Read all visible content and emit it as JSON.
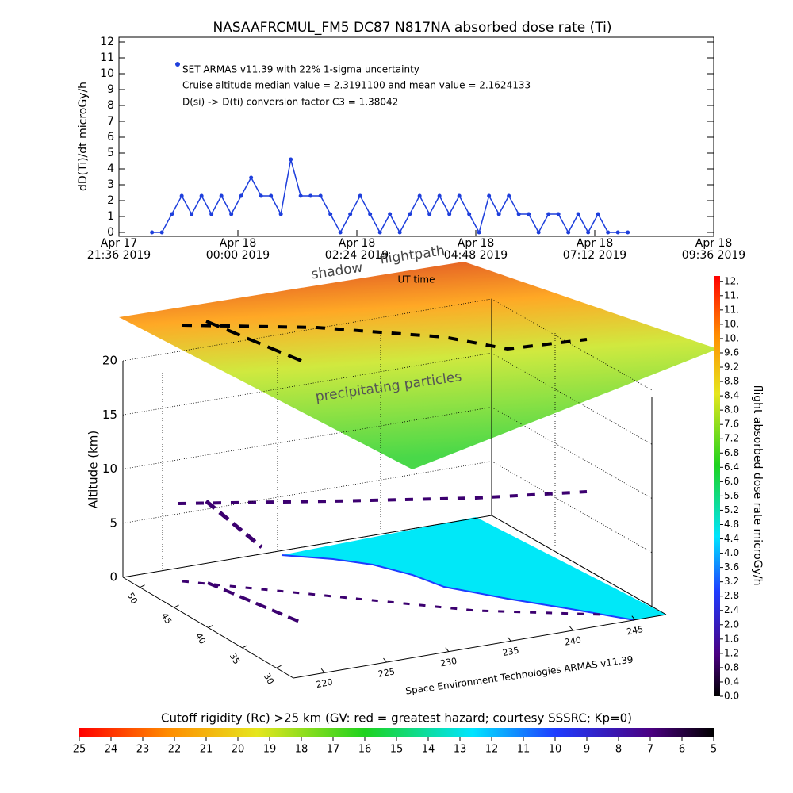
{
  "chart_data": [
    {
      "type": "line",
      "title": "NASAAFRCMUL_FM5 DC87 N817NA absorbed dose rate (Ti)",
      "ylabel": "dD(Ti)/dt microGy/h",
      "xlabel": "UT time",
      "color": "#1e3fdc",
      "annotations": [
        "SET ARMAS v11.39 with 22% 1-sigma uncertainty",
        "Cruise altitude median value = 2.3191100 and mean value = 2.1624133",
        "D(si) -> D(ti) conversion factor C3 = 1.38042"
      ],
      "xlim": [
        "2019-04-17T21:36",
        "2019-04-18T09:36"
      ],
      "xticks": [
        {
          "value": "2019-04-17T21:36",
          "label": [
            "Apr 17",
            "21:36 2019"
          ]
        },
        {
          "value": "2019-04-18T00:00",
          "label": [
            "Apr 18",
            "00:00 2019"
          ]
        },
        {
          "value": "2019-04-18T02:24",
          "label": [
            "Apr 18",
            "02:24 2019"
          ]
        },
        {
          "value": "2019-04-18T04:48",
          "label": [
            "Apr 18",
            "04:48 2019"
          ]
        },
        {
          "value": "2019-04-18T07:12",
          "label": [
            "Apr 18",
            "07:12 2019"
          ]
        },
        {
          "value": "2019-04-18T09:36",
          "label": [
            "Apr 18",
            "09:36 2019"
          ]
        }
      ],
      "ylim": [
        -0.25,
        12.3
      ],
      "yticks": [
        0,
        1,
        2,
        3,
        4,
        5,
        6,
        7,
        8,
        9,
        10,
        11,
        12
      ],
      "x": [
        "2019-04-17T22:16",
        "2019-04-17T22:28",
        "2019-04-17T22:40",
        "2019-04-17T22:52",
        "2019-04-17T23:04",
        "2019-04-17T23:16",
        "2019-04-17T23:28",
        "2019-04-17T23:40",
        "2019-04-17T23:52",
        "2019-04-18T00:04",
        "2019-04-18T00:16",
        "2019-04-18T00:28",
        "2019-04-18T00:40",
        "2019-04-18T00:52",
        "2019-04-18T01:04",
        "2019-04-18T01:16",
        "2019-04-18T01:28",
        "2019-04-18T01:40",
        "2019-04-18T01:52",
        "2019-04-18T02:04",
        "2019-04-18T02:16",
        "2019-04-18T02:28",
        "2019-04-18T02:40",
        "2019-04-18T02:52",
        "2019-04-18T03:04",
        "2019-04-18T03:16",
        "2019-04-18T03:28",
        "2019-04-18T03:40",
        "2019-04-18T03:52",
        "2019-04-18T04:04",
        "2019-04-18T04:16",
        "2019-04-18T04:28",
        "2019-04-18T04:40",
        "2019-04-18T04:52",
        "2019-04-18T05:04",
        "2019-04-18T05:16",
        "2019-04-18T05:28",
        "2019-04-18T05:40",
        "2019-04-18T05:52",
        "2019-04-18T06:04",
        "2019-04-18T06:16",
        "2019-04-18T06:28",
        "2019-04-18T06:40",
        "2019-04-18T06:52",
        "2019-04-18T07:04",
        "2019-04-18T07:16",
        "2019-04-18T07:28",
        "2019-04-18T07:40",
        "2019-04-18T07:52"
      ],
      "values": [
        0,
        0,
        1.15,
        2.3,
        1.15,
        2.3,
        1.15,
        2.3,
        1.15,
        2.3,
        3.45,
        2.3,
        2.3,
        1.15,
        4.6,
        2.3,
        2.3,
        2.3,
        1.15,
        0,
        1.15,
        2.3,
        1.15,
        0,
        1.15,
        0,
        1.15,
        2.3,
        1.15,
        2.3,
        1.15,
        2.3,
        1.15,
        0,
        2.3,
        1.15,
        2.3,
        1.15,
        1.15,
        0,
        1.15,
        1.15,
        0,
        1.15,
        0,
        1.15,
        0,
        0,
        0
      ]
    },
    {
      "type": "3d",
      "zlabel": "Altitude (km)",
      "zticks": [
        0,
        5,
        10,
        15,
        20
      ],
      "latticks": [
        50,
        45,
        40,
        35,
        30
      ],
      "lonticks": [
        220,
        225,
        230,
        235,
        240,
        245
      ],
      "annotations": [
        "shadow",
        "flightpath",
        "precipitating particles",
        "Space Environment Technologies ARMAS v11.39"
      ],
      "colorbar_label": "flight absorbed dose rate microGy/h",
      "colorbar_lim": [
        0,
        11.75
      ],
      "colorbar_ticks": [
        {
          "value": 0,
          "label": "0.0"
        },
        0.4,
        0.8,
        1.2,
        1.6,
        {
          "value": 2,
          "label": "2.0"
        },
        2.4,
        2.8,
        3.2,
        3.6,
        {
          "value": 4,
          "label": "4.0"
        },
        4.4,
        4.8,
        5.2,
        5.6,
        {
          "value": 6,
          "label": "6.0"
        },
        6.4,
        6.8,
        7.2,
        7.6,
        {
          "value": 8,
          "label": "8.0"
        },
        8.4,
        8.8,
        9.2,
        9.6,
        {
          "value": 10,
          "label": "10."
        },
        {
          "value": 10.4,
          "label": "10."
        },
        {
          "value": 10.8,
          "label": "11."
        },
        {
          "value": 11.2,
          "label": "11."
        },
        {
          "value": 11.6,
          "label": "12."
        }
      ]
    },
    {
      "type": "colorbar",
      "title": "Cutoff rigidity (Rc) >25 km (GV: red = greatest hazard; courtesy SSSRC; Kp=0)",
      "xlim": [
        25,
        5
      ],
      "xticks": [
        25,
        24,
        23,
        22,
        21,
        20,
        19,
        18,
        17,
        16,
        15,
        14,
        13,
        12,
        11,
        10,
        9,
        8,
        7,
        6,
        5
      ]
    }
  ]
}
